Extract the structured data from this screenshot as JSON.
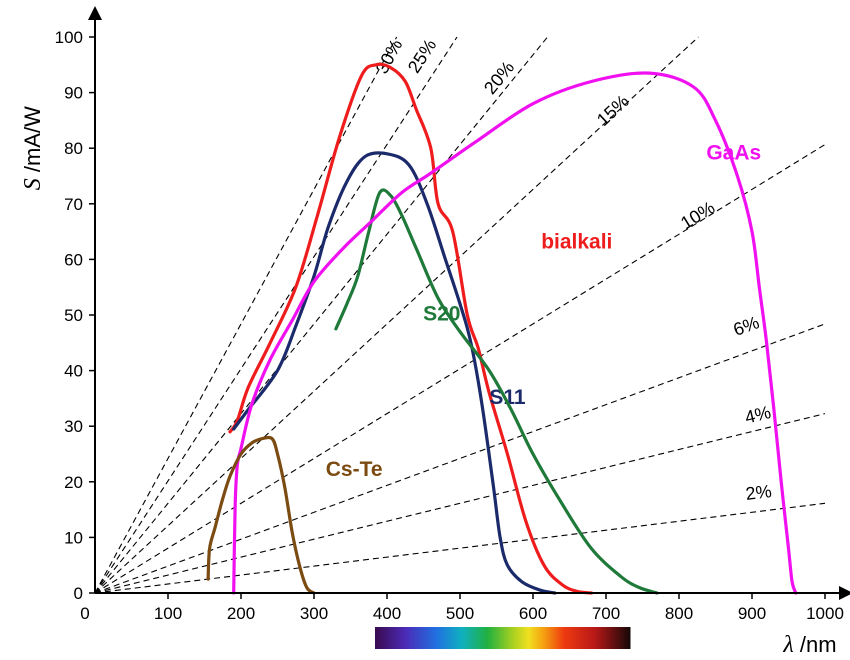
{
  "chart_data": {
    "type": "line",
    "x_axis": {
      "symbol": "λ",
      "unit": "/nm",
      "range": [
        0,
        1000
      ],
      "ticks": [
        0,
        100,
        200,
        300,
        400,
        500,
        600,
        700,
        800,
        900,
        1000
      ]
    },
    "y_axis": {
      "symbol": "S",
      "unit": "/mA/W",
      "range": [
        0,
        100
      ],
      "ticks": [
        0,
        10,
        20,
        30,
        40,
        50,
        60,
        70,
        80,
        90,
        100
      ]
    },
    "qe_lines": [
      {
        "label": "30%",
        "qe": 0.3,
        "label_at": [
          410,
          96
        ]
      },
      {
        "label": "25%",
        "qe": 0.25,
        "label_at": [
          455,
          96
        ]
      },
      {
        "label": "20%",
        "qe": 0.2,
        "label_at": [
          560,
          92
        ]
      },
      {
        "label": "15%",
        "qe": 0.15,
        "label_at": [
          715,
          86
        ]
      },
      {
        "label": "10%",
        "qe": 0.1,
        "label_at": [
          830,
          67
        ]
      },
      {
        "label": "6%",
        "qe": 0.06,
        "label_at": [
          895,
          47
        ]
      },
      {
        "label": "4%",
        "qe": 0.04,
        "label_at": [
          910,
          31
        ]
      },
      {
        "label": "2%",
        "qe": 0.02,
        "label_at": [
          910,
          17
        ]
      }
    ],
    "series": [
      {
        "name": "bialkali",
        "color": "#ee1c1c",
        "label_at": [
          660,
          62
        ],
        "points": [
          [
            185,
            29
          ],
          [
            195,
            31
          ],
          [
            210,
            37
          ],
          [
            240,
            45
          ],
          [
            275,
            55
          ],
          [
            305,
            68
          ],
          [
            335,
            82
          ],
          [
            365,
            93
          ],
          [
            385,
            95
          ],
          [
            405,
            94.5
          ],
          [
            425,
            92
          ],
          [
            440,
            87
          ],
          [
            460,
            80
          ],
          [
            470,
            70
          ],
          [
            490,
            65
          ],
          [
            510,
            50
          ],
          [
            525,
            44
          ],
          [
            540,
            36
          ],
          [
            565,
            25
          ],
          [
            590,
            13
          ],
          [
            615,
            5
          ],
          [
            640,
            1.5
          ],
          [
            660,
            0.3
          ],
          [
            680,
            0
          ]
        ]
      },
      {
        "name": "S11",
        "color": "#1b2a6b",
        "label_at": [
          565,
          34
        ],
        "points": [
          [
            190,
            29.5
          ],
          [
            210,
            33
          ],
          [
            250,
            40
          ],
          [
            275,
            48
          ],
          [
            300,
            57
          ],
          [
            320,
            66
          ],
          [
            345,
            74
          ],
          [
            370,
            78.5
          ],
          [
            400,
            79
          ],
          [
            430,
            77
          ],
          [
            455,
            70
          ],
          [
            480,
            60
          ],
          [
            500,
            52
          ],
          [
            515,
            45
          ],
          [
            530,
            34
          ],
          [
            545,
            20
          ],
          [
            555,
            10
          ],
          [
            565,
            5
          ],
          [
            585,
            2
          ],
          [
            610,
            0.5
          ],
          [
            630,
            0
          ]
        ]
      },
      {
        "name": "S20",
        "color": "#1f7a3a",
        "label_at": [
          475,
          49
        ],
        "points": [
          [
            330,
            47.5
          ],
          [
            345,
            52
          ],
          [
            360,
            57
          ],
          [
            375,
            65
          ],
          [
            390,
            72
          ],
          [
            405,
            71.5
          ],
          [
            420,
            68
          ],
          [
            440,
            62
          ],
          [
            470,
            53
          ],
          [
            500,
            47
          ],
          [
            540,
            40
          ],
          [
            570,
            33
          ],
          [
            600,
            25
          ],
          [
            640,
            16
          ],
          [
            680,
            8
          ],
          [
            720,
            3
          ],
          [
            745,
            1
          ],
          [
            770,
            0
          ]
        ]
      },
      {
        "name": "GaAs",
        "color": "#f010f0",
        "label_at": [
          875,
          78
        ],
        "points": [
          [
            190,
            0
          ],
          [
            192,
            16
          ],
          [
            195,
            23
          ],
          [
            200,
            26
          ],
          [
            215,
            34
          ],
          [
            240,
            42
          ],
          [
            270,
            49
          ],
          [
            300,
            56
          ],
          [
            340,
            62
          ],
          [
            380,
            67
          ],
          [
            420,
            72
          ],
          [
            460,
            75.5
          ],
          [
            520,
            81
          ],
          [
            600,
            88
          ],
          [
            680,
            92
          ],
          [
            760,
            93.5
          ],
          [
            820,
            91
          ],
          [
            850,
            85
          ],
          [
            880,
            75
          ],
          [
            900,
            65
          ],
          [
            910,
            55
          ],
          [
            920,
            45
          ],
          [
            930,
            33
          ],
          [
            940,
            20
          ],
          [
            950,
            8
          ],
          [
            955,
            2
          ],
          [
            960,
            0
          ]
        ]
      },
      {
        "name": "Cs-Te",
        "color": "#7b4b12",
        "label_at": [
          355,
          21
        ],
        "points": [
          [
            155,
            2.5
          ],
          [
            157,
            8
          ],
          [
            165,
            12
          ],
          [
            175,
            17
          ],
          [
            185,
            21
          ],
          [
            200,
            25
          ],
          [
            215,
            27
          ],
          [
            230,
            27.8
          ],
          [
            243,
            27.7
          ],
          [
            250,
            25
          ],
          [
            260,
            19
          ],
          [
            270,
            11
          ],
          [
            280,
            5
          ],
          [
            290,
            1
          ],
          [
            300,
            0
          ]
        ]
      }
    ],
    "spectrum_bar": {
      "range_nm": [
        400,
        750
      ]
    }
  }
}
